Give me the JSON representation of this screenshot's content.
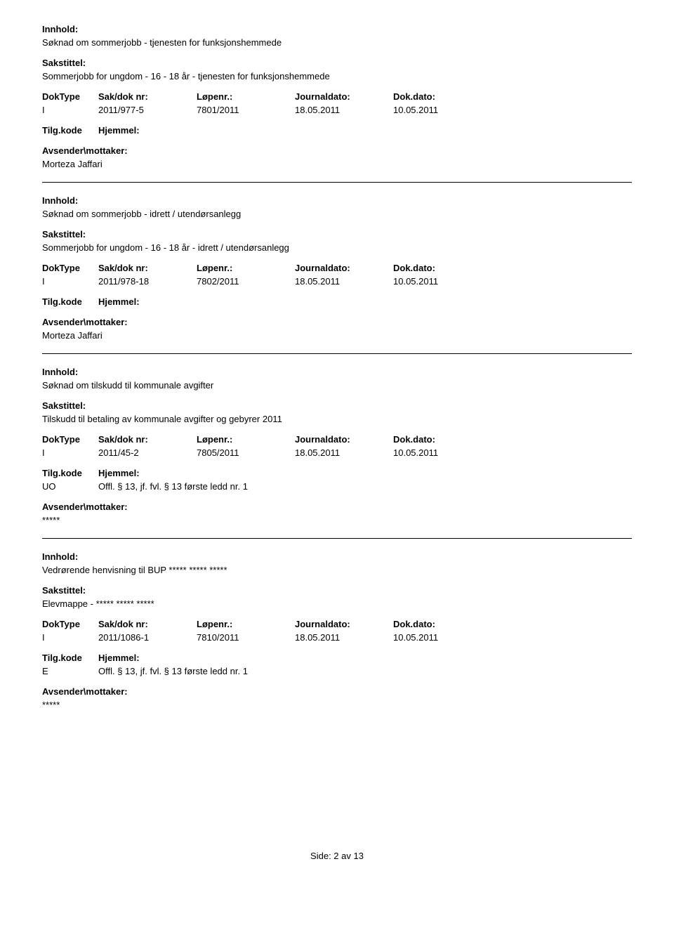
{
  "labels": {
    "innhold": "Innhold:",
    "sakstittel": "Sakstittel:",
    "doktype": "DokType",
    "sakdoknr": "Sak/dok nr:",
    "lopenr": "Løpenr.:",
    "journaldato": "Journaldato:",
    "dokdato": "Dok.dato:",
    "tilgkode": "Tilg.kode",
    "hjemmel": "Hjemmel:",
    "avsender": "Avsender\\mottaker:"
  },
  "entries": [
    {
      "innhold": "Søknad om sommerjobb - tjenesten for funksjonshemmede",
      "sakstittel": "Sommerjobb for ungdom - 16 - 18 år - tjenesten for funksjonshemmede",
      "doktype": "I",
      "sakdoknr": "2011/977-5",
      "lopenr": "7801/2011",
      "journaldato": "18.05.2011",
      "dokdato": "10.05.2011",
      "tilgkode": "",
      "hjemmel": "",
      "avsender": "Morteza Jaffari"
    },
    {
      "innhold": "Søknad om sommerjobb - idrett / utendørsanlegg",
      "sakstittel": "Sommerjobb for ungdom - 16 - 18 år - idrett / utendørsanlegg",
      "doktype": "I",
      "sakdoknr": "2011/978-18",
      "lopenr": "7802/2011",
      "journaldato": "18.05.2011",
      "dokdato": "10.05.2011",
      "tilgkode": "",
      "hjemmel": "",
      "avsender": "Morteza Jaffari"
    },
    {
      "innhold": "Søknad om tilskudd til kommunale avgifter",
      "sakstittel": "Tilskudd til betaling av kommunale avgifter og gebyrer 2011",
      "doktype": "I",
      "sakdoknr": "2011/45-2",
      "lopenr": "7805/2011",
      "journaldato": "18.05.2011",
      "dokdato": "10.05.2011",
      "tilgkode": "UO",
      "hjemmel": "Offl. § 13, jf. fvl. § 13 første ledd nr. 1",
      "avsender": "*****"
    },
    {
      "innhold": "Vedrørende henvisning til BUP ***** ***** *****",
      "sakstittel": "Elevmappe - ***** ***** *****",
      "doktype": "I",
      "sakdoknr": "2011/1086-1",
      "lopenr": "7810/2011",
      "journaldato": "18.05.2011",
      "dokdato": "10.05.2011",
      "tilgkode": "E",
      "hjemmel": "Offl. § 13, jf. fvl. § 13 første ledd nr. 1",
      "avsender": "*****"
    }
  ],
  "footer": "Side: 2 av 13"
}
